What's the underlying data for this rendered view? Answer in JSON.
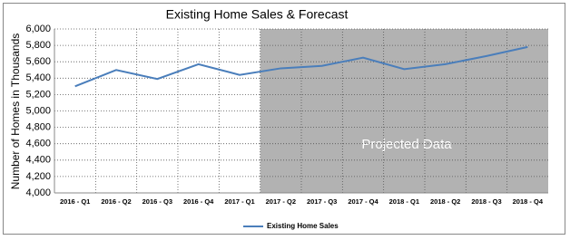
{
  "chart_data": {
    "type": "line",
    "title": "Existing Home Sales & Forecast",
    "y_label": "Number  of  Homes  in Thousands",
    "annotation": "Projected  Data",
    "categories": [
      "2016 - Q1",
      "2016 - Q2",
      "2016 - Q3",
      "2016 - Q4",
      "2017 - Q1",
      "2017 - Q2",
      "2017 - Q3",
      "2017 - Q4",
      "2018 - Q1",
      "2018 - Q2",
      "2018 - Q3",
      "2018 - Q4"
    ],
    "series": [
      {
        "name": "Existing Home Sales",
        "color": "#4a7ebb",
        "values": [
          5300,
          5500,
          5390,
          5570,
          5440,
          5520,
          5550,
          5650,
          5510,
          5570,
          5670,
          5780
        ]
      }
    ],
    "ylim": [
      4000,
      6000
    ],
    "yticks": [
      {
        "value": 4000,
        "label": "4,000"
      },
      {
        "value": 4200,
        "label": "4,200"
      },
      {
        "value": 4400,
        "label": "4,400"
      },
      {
        "value": 4600,
        "label": "4,600"
      },
      {
        "value": 4800,
        "label": "4,800"
      },
      {
        "value": 5000,
        "label": "5,000"
      },
      {
        "value": 5200,
        "label": "5,200"
      },
      {
        "value": 5400,
        "label": "5,400"
      },
      {
        "value": 5600,
        "label": "5,600"
      },
      {
        "value": 5800,
        "label": "5,800"
      },
      {
        "value": 6000,
        "label": "6,000"
      }
    ],
    "grid": true,
    "legend": "bottom"
  }
}
